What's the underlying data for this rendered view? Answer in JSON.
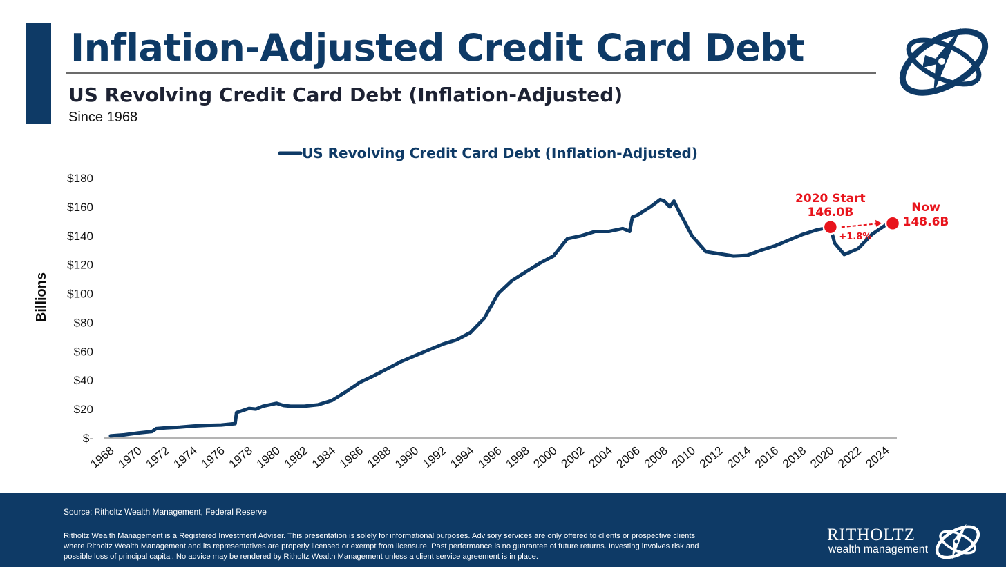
{
  "header": {
    "title": "Inflation-Adjusted Credit Card Debt",
    "subtitle": "US Revolving Credit Card Debt (Inflation-Adjusted)",
    "since": "Since 1968"
  },
  "colors": {
    "brand_navy": "#0e3a66",
    "line": "#0e3a66",
    "highlight_red": "#e8141c"
  },
  "icons": {
    "logo": "compass-rose-orbit-icon"
  },
  "chart_data": {
    "type": "line",
    "title": "",
    "ylabel": "Billions",
    "xlabel": "",
    "ylim": [
      0,
      180
    ],
    "xlim": [
      1968,
      2024.5
    ],
    "grid": false,
    "legend": {
      "placement": "top-center",
      "entries": [
        "US Revolving Credit Card Debt (Inflation-Adjusted)"
      ]
    },
    "y_ticks": [
      {
        "value": 0,
        "label": "$-"
      },
      {
        "value": 20,
        "label": "$20"
      },
      {
        "value": 40,
        "label": "$40"
      },
      {
        "value": 60,
        "label": "$60"
      },
      {
        "value": 80,
        "label": "$80"
      },
      {
        "value": 100,
        "label": "$100"
      },
      {
        "value": 120,
        "label": "$120"
      },
      {
        "value": 140,
        "label": "$140"
      },
      {
        "value": 160,
        "label": "$160"
      },
      {
        "value": 180,
        "label": "$180"
      }
    ],
    "x_ticks": [
      "1968",
      "1970",
      "1972",
      "1974",
      "1976",
      "1978",
      "1980",
      "1982",
      "1984",
      "1986",
      "1988",
      "1990",
      "1992",
      "1994",
      "1996",
      "1998",
      "2000",
      "2002",
      "2004",
      "2006",
      "2008",
      "2010",
      "2012",
      "2014",
      "2016",
      "2018",
      "2020",
      "2022",
      "2024"
    ],
    "series": [
      {
        "name": "US Revolving Credit Card Debt (Inflation-Adjusted)",
        "points": [
          [
            1968.0,
            1.5
          ],
          [
            1969.0,
            2.2
          ],
          [
            1970.0,
            3.5
          ],
          [
            1971.0,
            4.5
          ],
          [
            1971.3,
            6.5
          ],
          [
            1972.0,
            7.0
          ],
          [
            1973.0,
            7.5
          ],
          [
            1974.0,
            8.3
          ],
          [
            1975.0,
            8.8
          ],
          [
            1976.0,
            9.0
          ],
          [
            1977.0,
            10.0
          ],
          [
            1977.1,
            17.5
          ],
          [
            1978.0,
            20.5
          ],
          [
            1978.5,
            20.0
          ],
          [
            1979.0,
            22.0
          ],
          [
            1980.0,
            24.0
          ],
          [
            1980.5,
            22.5
          ],
          [
            1981.0,
            22.0
          ],
          [
            1982.0,
            22.0
          ],
          [
            1983.0,
            23.0
          ],
          [
            1984.0,
            26.0
          ],
          [
            1985.0,
            32.0
          ],
          [
            1986.0,
            38.5
          ],
          [
            1987.0,
            43.0
          ],
          [
            1988.0,
            48.0
          ],
          [
            1989.0,
            53.0
          ],
          [
            1990.0,
            57.0
          ],
          [
            1991.0,
            61.0
          ],
          [
            1992.0,
            65.0
          ],
          [
            1993.0,
            68.0
          ],
          [
            1994.0,
            73.0
          ],
          [
            1995.0,
            83.0
          ],
          [
            1996.0,
            100.0
          ],
          [
            1997.0,
            109.0
          ],
          [
            1998.0,
            115.0
          ],
          [
            1999.0,
            121.0
          ],
          [
            2000.0,
            126.0
          ],
          [
            2001.0,
            138.0
          ],
          [
            2002.0,
            140.0
          ],
          [
            2003.0,
            143.0
          ],
          [
            2004.0,
            143.0
          ],
          [
            2005.0,
            145.0
          ],
          [
            2005.5,
            143.0
          ],
          [
            2005.7,
            153.0
          ],
          [
            2006.0,
            154.0
          ],
          [
            2007.0,
            160.0
          ],
          [
            2007.7,
            165.0
          ],
          [
            2008.0,
            164.0
          ],
          [
            2008.4,
            160.0
          ],
          [
            2008.7,
            164.0
          ],
          [
            2009.0,
            158.0
          ],
          [
            2010.0,
            140.0
          ],
          [
            2011.0,
            129.0
          ],
          [
            2012.0,
            127.5
          ],
          [
            2013.0,
            126.0
          ],
          [
            2014.0,
            126.5
          ],
          [
            2015.0,
            130.0
          ],
          [
            2016.0,
            133.0
          ],
          [
            2017.0,
            137.0
          ],
          [
            2018.0,
            141.0
          ],
          [
            2019.0,
            144.0
          ],
          [
            2020.0,
            146.0
          ],
          [
            2020.3,
            135.0
          ],
          [
            2021.0,
            127.0
          ],
          [
            2022.0,
            131.0
          ],
          [
            2023.0,
            141.0
          ],
          [
            2024.0,
            147.5
          ],
          [
            2024.5,
            148.6
          ]
        ]
      }
    ],
    "annotations": [
      {
        "id": "start",
        "x": 2020.0,
        "y": 146.0,
        "label_line1": "2020 Start",
        "label_line2": "146.0B"
      },
      {
        "id": "now",
        "x": 2024.5,
        "y": 148.6,
        "label_line1": "Now",
        "label_line2": "148.6B"
      },
      {
        "id": "change",
        "label": "+1.8%"
      }
    ]
  },
  "footer": {
    "source": "Source: Ritholtz Wealth Management, Federal Reserve",
    "disclaimer": "Ritholtz Wealth Management is a Registered Investment Adviser. This presentation is solely for informational purposes. Advisory services are only offered to clients or prospective clients where Ritholtz Wealth Management and its representatives are properly licensed or exempt from licensure. Past performance is no guarantee of future returns. Investing involves risk and possible loss of principal capital. No advice may be rendered by Ritholtz Wealth Management unless a client service agreement is in place.",
    "brand_name": "RITHOLTZ",
    "brand_sub": "wealth management"
  }
}
